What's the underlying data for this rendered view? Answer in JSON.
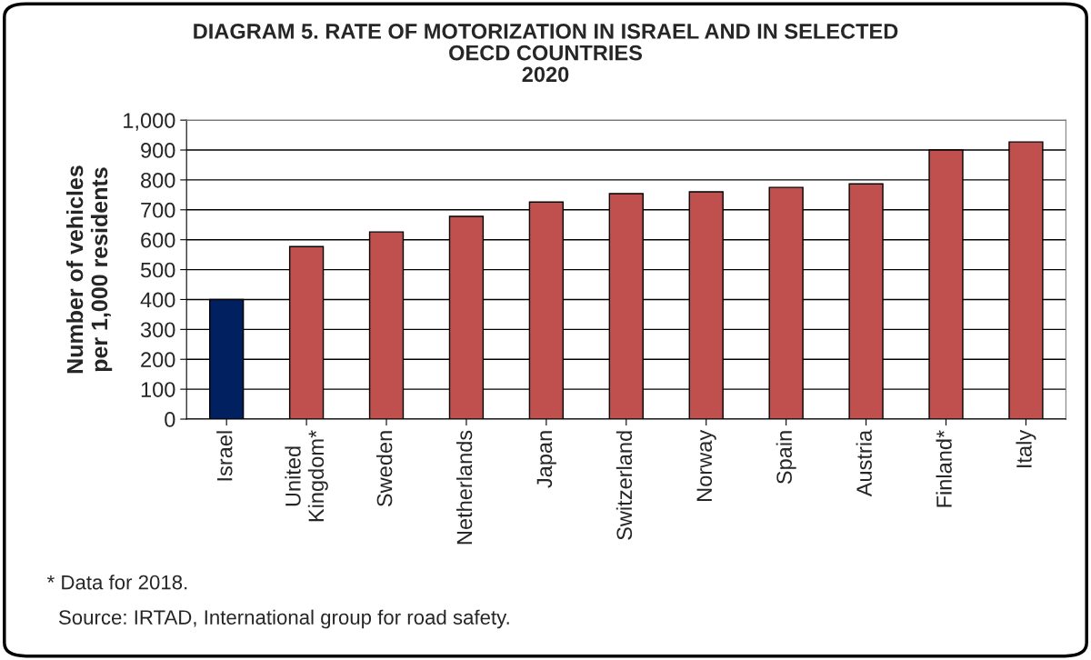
{
  "chart_data": {
    "type": "bar",
    "title": "DIAGRAM 5. RATE OF MOTORIZATION IN ISRAEL AND IN SELECTED\nOECD COUNTRIES\n2020",
    "ylabel": "Number of vehicles\nper 1,000 residents",
    "categories": [
      "Israel",
      "United\nKingdom*",
      "Sweden",
      "Netherlands",
      "Japan",
      "Switzerland",
      "Norway",
      "Spain",
      "Austria",
      "Finland*",
      "Italy"
    ],
    "values": [
      400,
      577,
      626,
      678,
      726,
      754,
      760,
      775,
      787,
      900,
      927
    ],
    "colors": [
      "#002060",
      "#c0504d",
      "#c0504d",
      "#c0504d",
      "#c0504d",
      "#c0504d",
      "#c0504d",
      "#c0504d",
      "#c0504d",
      "#c0504d",
      "#c0504d"
    ],
    "ylim": [
      0,
      1000
    ],
    "yticks": [
      0,
      100,
      200,
      300,
      400,
      500,
      600,
      700,
      800,
      900,
      {
        "value": 1000,
        "label": "1,000"
      }
    ],
    "grid": "y",
    "annotations": [
      "* Data for 2018.",
      "  Source: IRTAD, International group for road safety."
    ]
  }
}
